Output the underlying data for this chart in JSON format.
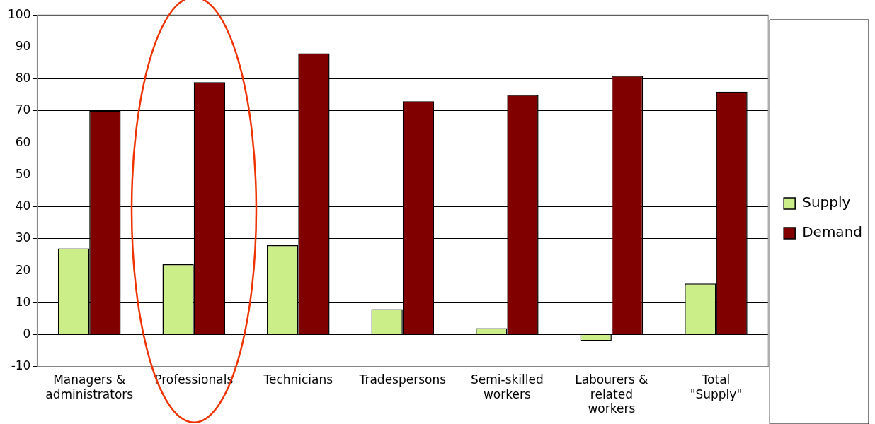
{
  "chart_data": {
    "type": "bar",
    "categories": [
      "Managers & administrators",
      "Professionals",
      "Technicians",
      "Tradespersons",
      "Semi-skilled workers",
      "Labourers & related workers",
      "Total \"Supply\""
    ],
    "series": [
      {
        "name": "Supply",
        "color": "#ccee88",
        "values": [
          27,
          22,
          28,
          8,
          2,
          -2,
          16
        ]
      },
      {
        "name": "Demand",
        "color": "#800000",
        "values": [
          70,
          79,
          88,
          73,
          75,
          81,
          76
        ]
      }
    ],
    "ylim": [
      -10,
      100
    ],
    "yticks": [
      -10,
      0,
      10,
      20,
      30,
      40,
      50,
      60,
      70,
      80,
      90,
      100
    ],
    "grid": "y",
    "legend": "right"
  }
}
